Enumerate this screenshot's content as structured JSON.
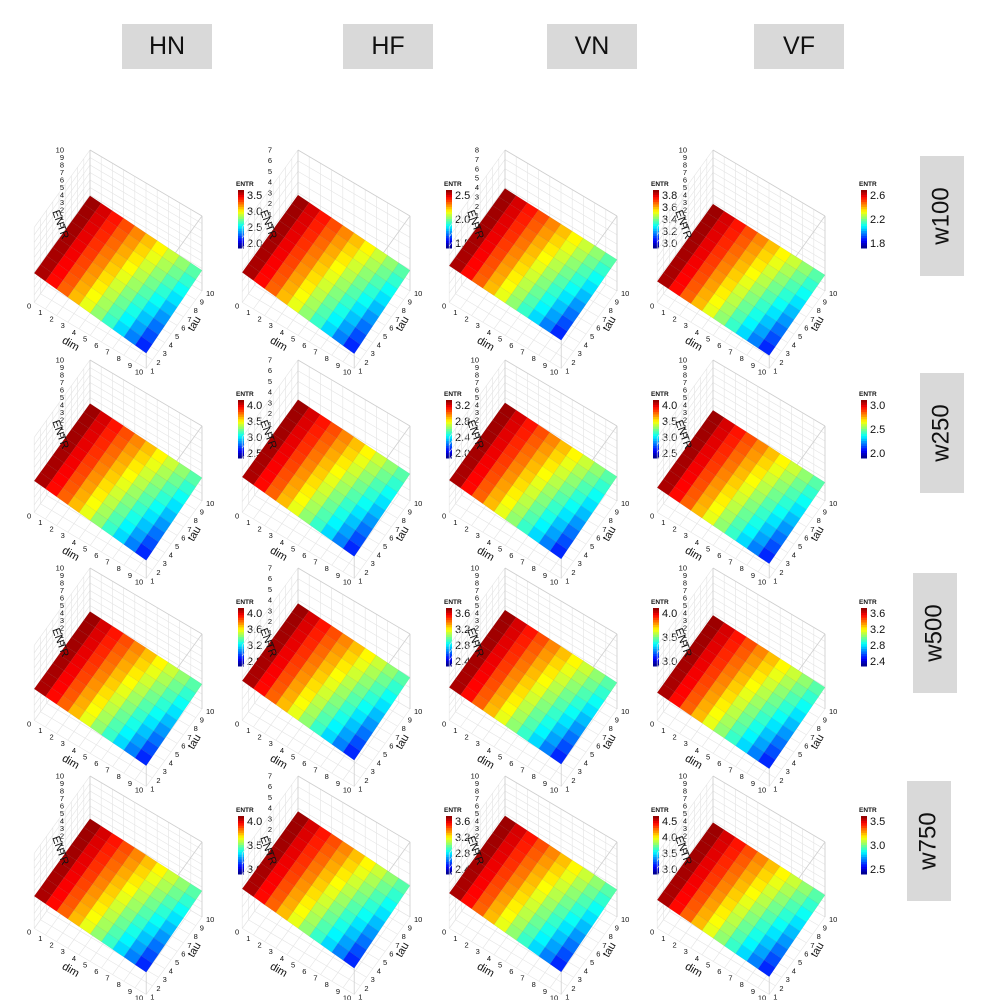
{
  "figure": {
    "columns": [
      "HN",
      "HF",
      "VN",
      "VF"
    ],
    "rows": [
      "w100",
      "w250",
      "w500",
      "w750"
    ]
  },
  "colorscale": "jet",
  "chart_data": [
    {
      "type": "surface3d",
      "row": "w100",
      "col": "HN",
      "xlabel": "dim",
      "ylabel": "tau",
      "zlabel": "ENTR",
      "xticks": [
        0,
        1,
        2,
        3,
        4,
        5,
        6,
        7,
        8,
        9,
        10
      ],
      "yticks": [
        1,
        2,
        3,
        4,
        5,
        6,
        7,
        8,
        9,
        10
      ],
      "zticks": [
        0,
        1,
        2,
        3,
        4,
        5,
        6,
        7,
        8,
        9,
        10
      ],
      "legend_title": "ENTR",
      "legend_ticks": [
        "3.5",
        "3.0",
        "2.5",
        "2.0"
      ],
      "zrange": [
        1.8,
        3.9
      ]
    },
    {
      "type": "surface3d",
      "row": "w100",
      "col": "HF",
      "xlabel": "dim",
      "ylabel": "tau",
      "zlabel": "ENTR",
      "xticks": [
        0,
        1,
        2,
        3,
        4,
        5,
        6,
        7,
        8,
        9,
        10
      ],
      "yticks": [
        1,
        2,
        3,
        4,
        5,
        6,
        7,
        8,
        9,
        10
      ],
      "zticks": [
        0,
        1,
        2,
        3,
        4,
        5,
        6,
        7
      ],
      "legend_title": "ENTR",
      "legend_ticks": [
        "2.5",
        "2.0",
        "1.5"
      ],
      "zrange": [
        1.2,
        2.8
      ]
    },
    {
      "type": "surface3d",
      "row": "w100",
      "col": "VN",
      "xlabel": "dim",
      "ylabel": "tau",
      "zlabel": "ENTR",
      "xticks": [
        0,
        1,
        2,
        3,
        4,
        5,
        6,
        7,
        8,
        9,
        10
      ],
      "yticks": [
        1,
        2,
        3,
        4,
        5,
        6,
        7,
        8,
        9,
        10
      ],
      "zticks": [
        0,
        1,
        2,
        3,
        4,
        5,
        6,
        7,
        8
      ],
      "legend_title": "ENTR",
      "legend_ticks": [
        "3.8",
        "3.6",
        "3.4",
        "3.2",
        "3.0"
      ],
      "zrange": [
        2.9,
        3.9
      ]
    },
    {
      "type": "surface3d",
      "row": "w100",
      "col": "VF",
      "xlabel": "dim",
      "ylabel": "tau",
      "zlabel": "ENTR",
      "xticks": [
        0,
        1,
        2,
        3,
        4,
        5,
        6,
        7,
        8,
        9,
        10
      ],
      "yticks": [
        1,
        2,
        3,
        4,
        5,
        6,
        7,
        8,
        9,
        10
      ],
      "zticks": [
        0,
        1,
        2,
        3,
        4,
        5,
        6,
        7,
        8,
        9,
        10
      ],
      "legend_title": "ENTR",
      "legend_ticks": [
        "2.6",
        "2.2",
        "1.8"
      ],
      "zrange": [
        1.6,
        2.8
      ]
    },
    {
      "type": "surface3d",
      "row": "w250",
      "col": "HN",
      "xlabel": "dim",
      "ylabel": "tau",
      "zlabel": "ENTR",
      "xticks": [
        0,
        1,
        2,
        3,
        4,
        5,
        6,
        7,
        8,
        9,
        10
      ],
      "yticks": [
        1,
        2,
        3,
        4,
        5,
        6,
        7,
        8,
        9,
        10
      ],
      "zticks": [
        0,
        1,
        2,
        3,
        4,
        5,
        6,
        7,
        8,
        9,
        10
      ],
      "legend_title": "ENTR",
      "legend_ticks": [
        "4.0",
        "3.5",
        "3.0",
        "2.5"
      ],
      "zrange": [
        2.2,
        4.2
      ]
    },
    {
      "type": "surface3d",
      "row": "w250",
      "col": "HF",
      "xlabel": "dim",
      "ylabel": "tau",
      "zlabel": "ENTR",
      "xticks": [
        0,
        1,
        2,
        3,
        4,
        5,
        6,
        7,
        8,
        9,
        10
      ],
      "yticks": [
        1,
        2,
        3,
        4,
        5,
        6,
        7,
        8,
        9,
        10
      ],
      "zticks": [
        0,
        1,
        2,
        3,
        4,
        5,
        6,
        7
      ],
      "legend_title": "ENTR",
      "legend_ticks": [
        "3.2",
        "2.8",
        "2.4",
        "2.0"
      ],
      "zrange": [
        1.9,
        3.3
      ]
    },
    {
      "type": "surface3d",
      "row": "w250",
      "col": "VN",
      "xlabel": "dim",
      "ylabel": "tau",
      "zlabel": "ENTR",
      "xticks": [
        0,
        1,
        2,
        3,
        4,
        5,
        6,
        7,
        8,
        9,
        10
      ],
      "yticks": [
        1,
        2,
        3,
        4,
        5,
        6,
        7,
        8,
        9,
        10
      ],
      "zticks": [
        0,
        1,
        2,
        3,
        4,
        5,
        6,
        7,
        8,
        9,
        10
      ],
      "legend_title": "ENTR",
      "legend_ticks": [
        "4.0",
        "3.5",
        "3.0",
        "2.5"
      ],
      "zrange": [
        2.4,
        4.3
      ]
    },
    {
      "type": "surface3d",
      "row": "w250",
      "col": "VF",
      "xlabel": "dim",
      "ylabel": "tau",
      "zlabel": "ENTR",
      "xticks": [
        0,
        1,
        2,
        3,
        4,
        5,
        6,
        7,
        8,
        9,
        10
      ],
      "yticks": [
        1,
        2,
        3,
        4,
        5,
        6,
        7,
        8,
        9,
        10
      ],
      "zticks": [
        0,
        1,
        2,
        3,
        4,
        5,
        6,
        7,
        8,
        9,
        10
      ],
      "legend_title": "ENTR",
      "legend_ticks": [
        "3.0",
        "2.5",
        "2.0"
      ],
      "zrange": [
        1.8,
        3.3
      ]
    },
    {
      "type": "surface3d",
      "row": "w500",
      "col": "HN",
      "xlabel": "dim",
      "ylabel": "tau",
      "zlabel": "ENTR",
      "xticks": [
        0,
        1,
        2,
        3,
        4,
        5,
        6,
        7,
        8,
        9,
        10
      ],
      "yticks": [
        1,
        2,
        3,
        4,
        5,
        6,
        7,
        8,
        9,
        10
      ],
      "zticks": [
        0,
        1,
        2,
        3,
        4,
        5,
        6,
        7,
        8,
        9,
        10
      ],
      "legend_title": "ENTR",
      "legend_ticks": [
        "4.0",
        "3.6",
        "3.2",
        "2.8"
      ],
      "zrange": [
        2.6,
        4.2
      ]
    },
    {
      "type": "surface3d",
      "row": "w500",
      "col": "HF",
      "xlabel": "dim",
      "ylabel": "tau",
      "zlabel": "ENTR",
      "xticks": [
        0,
        1,
        2,
        3,
        4,
        5,
        6,
        7,
        8,
        9,
        10
      ],
      "yticks": [
        1,
        2,
        3,
        4,
        5,
        6,
        7,
        8,
        9,
        10
      ],
      "zticks": [
        0,
        1,
        2,
        3,
        4,
        5,
        6,
        7
      ],
      "legend_title": "ENTR",
      "legend_ticks": [
        "3.6",
        "3.2",
        "2.8",
        "2.4"
      ],
      "zrange": [
        2.3,
        3.7
      ]
    },
    {
      "type": "surface3d",
      "row": "w500",
      "col": "VN",
      "xlabel": "dim",
      "ylabel": "tau",
      "zlabel": "ENTR",
      "xticks": [
        0,
        1,
        2,
        3,
        4,
        5,
        6,
        7,
        8,
        9,
        10
      ],
      "yticks": [
        1,
        2,
        3,
        4,
        5,
        6,
        7,
        8,
        9,
        10
      ],
      "zticks": [
        0,
        1,
        2,
        3,
        4,
        5,
        6,
        7,
        8,
        9,
        10
      ],
      "legend_title": "ENTR",
      "legend_ticks": [
        "4.0",
        "3.5",
        "3.0"
      ],
      "zrange": [
        2.8,
        4.4
      ]
    },
    {
      "type": "surface3d",
      "row": "w500",
      "col": "VF",
      "xlabel": "dim",
      "ylabel": "tau",
      "zlabel": "ENTR",
      "xticks": [
        0,
        1,
        2,
        3,
        4,
        5,
        6,
        7,
        8,
        9,
        10
      ],
      "yticks": [
        1,
        2,
        3,
        4,
        5,
        6,
        7,
        8,
        9,
        10
      ],
      "zticks": [
        0,
        1,
        2,
        3,
        4,
        5,
        6,
        7,
        8,
        9,
        10
      ],
      "legend_title": "ENTR",
      "legend_ticks": [
        "3.6",
        "3.2",
        "2.8",
        "2.4"
      ],
      "zrange": [
        2.2,
        3.7
      ]
    },
    {
      "type": "surface3d",
      "row": "w750",
      "col": "HN",
      "xlabel": "dim",
      "ylabel": "tau",
      "zlabel": "ENTR",
      "xticks": [
        0,
        1,
        2,
        3,
        4,
        5,
        6,
        7,
        8,
        9,
        10
      ],
      "yticks": [
        1,
        2,
        3,
        4,
        5,
        6,
        7,
        8,
        9,
        10
      ],
      "zticks": [
        0,
        1,
        2,
        3,
        4,
        5,
        6,
        7,
        8,
        9,
        10
      ],
      "legend_title": "ENTR",
      "legend_ticks": [
        "4.0",
        "3.5",
        "3.0"
      ],
      "zrange": [
        2.8,
        4.3
      ]
    },
    {
      "type": "surface3d",
      "row": "w750",
      "col": "HF",
      "xlabel": "dim",
      "ylabel": "tau",
      "zlabel": "ENTR",
      "xticks": [
        0,
        1,
        2,
        3,
        4,
        5,
        6,
        7,
        8,
        9,
        10
      ],
      "yticks": [
        1,
        2,
        3,
        4,
        5,
        6,
        7,
        8,
        9,
        10
      ],
      "zticks": [
        0,
        1,
        2,
        3,
        4,
        5,
        6,
        7
      ],
      "legend_title": "ENTR",
      "legend_ticks": [
        "3.6",
        "3.2",
        "2.8",
        "2.4"
      ],
      "zrange": [
        2.3,
        3.7
      ]
    },
    {
      "type": "surface3d",
      "row": "w750",
      "col": "VN",
      "xlabel": "dim",
      "ylabel": "tau",
      "zlabel": "ENTR",
      "xticks": [
        0,
        1,
        2,
        3,
        4,
        5,
        6,
        7,
        8,
        9,
        10
      ],
      "yticks": [
        1,
        2,
        3,
        4,
        5,
        6,
        7,
        8,
        9,
        10
      ],
      "zticks": [
        0,
        1,
        2,
        3,
        4,
        5,
        6,
        7,
        8,
        9,
        10
      ],
      "legend_title": "ENTR",
      "legend_ticks": [
        "4.5",
        "4.0",
        "3.5",
        "3.0"
      ],
      "zrange": [
        2.8,
        4.7
      ]
    },
    {
      "type": "surface3d",
      "row": "w750",
      "col": "VF",
      "xlabel": "dim",
      "ylabel": "tau",
      "zlabel": "ENTR",
      "xticks": [
        0,
        1,
        2,
        3,
        4,
        5,
        6,
        7,
        8,
        9,
        10
      ],
      "yticks": [
        1,
        2,
        3,
        4,
        5,
        6,
        7,
        8,
        9,
        10
      ],
      "zticks": [
        0,
        1,
        2,
        3,
        4,
        5,
        6,
        7,
        8,
        9,
        10
      ],
      "legend_title": "ENTR",
      "legend_ticks": [
        "3.5",
        "3.0",
        "2.5"
      ],
      "zrange": [
        2.2,
        3.8
      ]
    }
  ]
}
